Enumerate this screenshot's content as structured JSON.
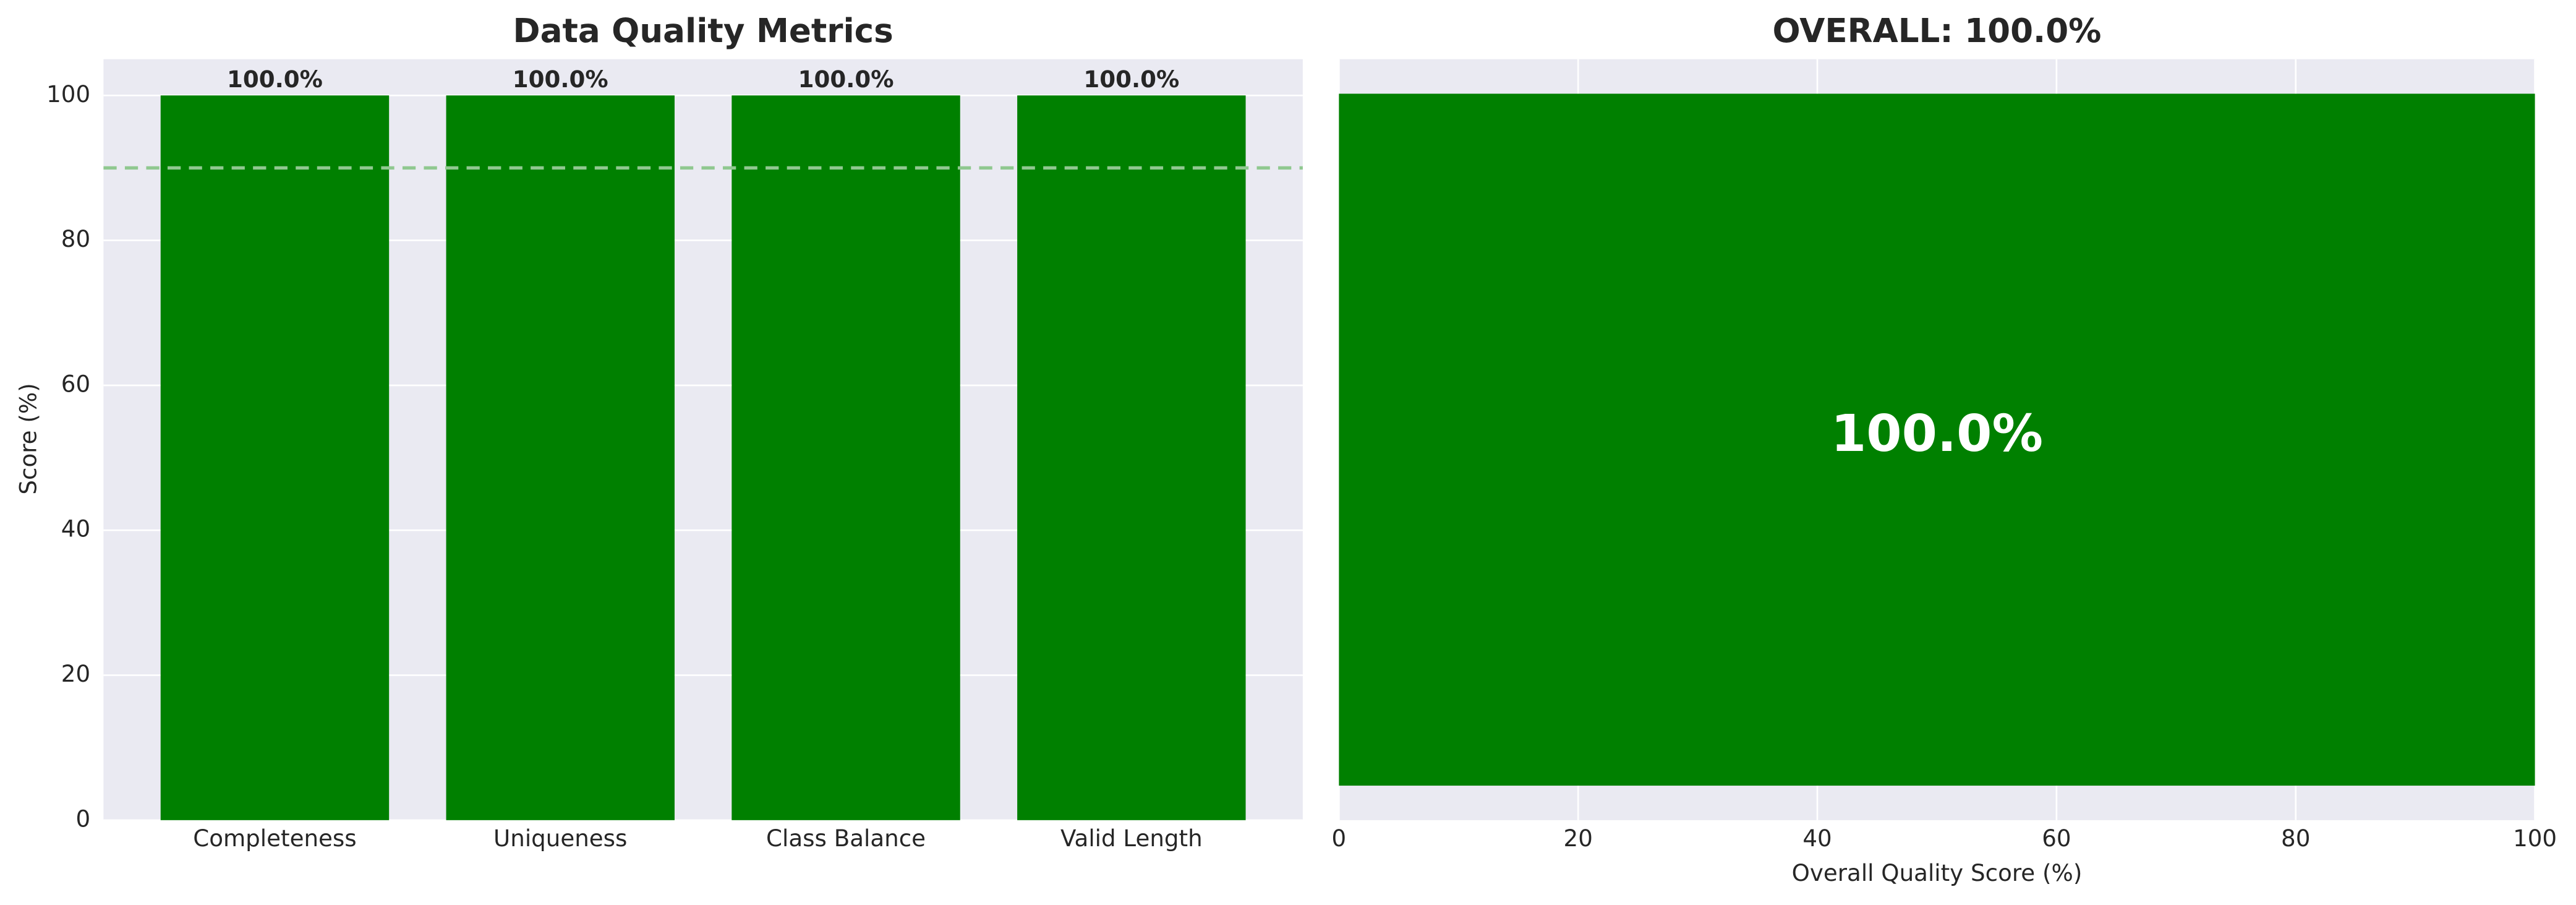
{
  "chart_data": [
    {
      "type": "bar",
      "title": "Data Quality Metrics",
      "y_label": "Score (%)",
      "categories": [
        "Completeness",
        "Uniqueness",
        "Class Balance",
        "Valid Length"
      ],
      "values": [
        100,
        100,
        100,
        100
      ],
      "value_labels": [
        "100.0%",
        "100.0%",
        "100.0%",
        "100.0%"
      ],
      "color": "#008000",
      "ylim": [
        0,
        105
      ],
      "yticks": [
        0,
        20,
        40,
        60,
        80,
        100
      ],
      "grid": true,
      "threshold": 90,
      "threshold_color": "#90c890"
    },
    {
      "type": "barh",
      "title": "OVERALL: 100.0%",
      "x_label": "Overall Quality Score (%)",
      "categories": [
        null
      ],
      "values": [
        100
      ],
      "value_labels": [
        "100.0%"
      ],
      "color": "#008000",
      "xlim": [
        0,
        100
      ],
      "xticks": [
        0,
        20,
        40,
        60,
        80,
        100
      ],
      "grid": true
    }
  ]
}
